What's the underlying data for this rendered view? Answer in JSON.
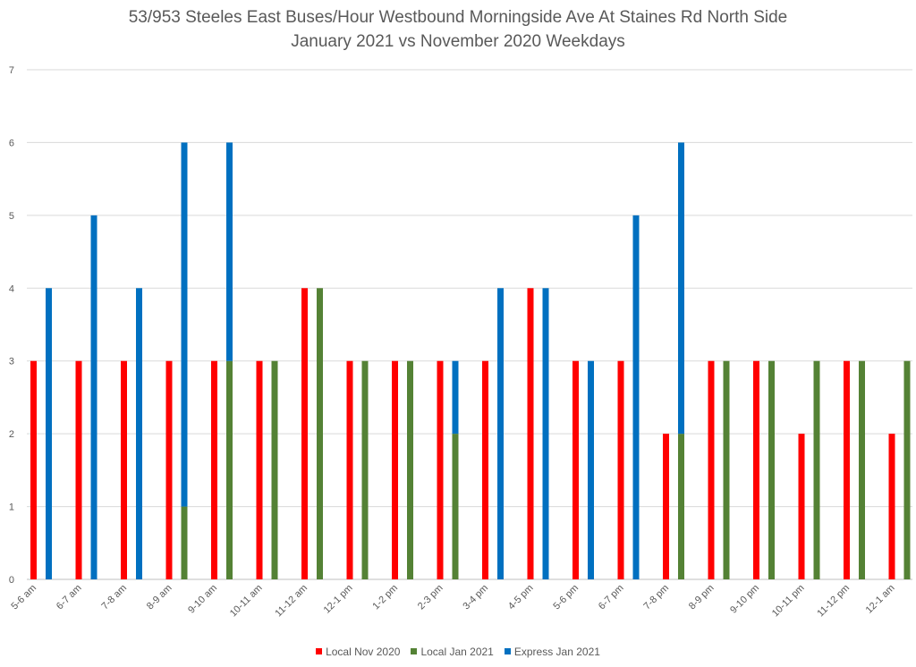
{
  "chart_data": {
    "type": "bar",
    "title": "53/953 Steeles East Buses/Hour Westbound Morningside Ave At Staines Rd North Side",
    "subtitle": "January 2021 vs November 2020 Weekdays",
    "categories": [
      "5-6 am",
      "6-7 am",
      "7-8 am",
      "8-9 am",
      "9-10 am",
      "10-11 am",
      "11-12 am",
      "12-1 pm",
      "1-2 pm",
      "2-3 pm",
      "3-4 pm",
      "4-5 pm",
      "5-6 pm",
      "6-7 pm",
      "7-8 pm",
      "8-9 pm",
      "9-10 pm",
      "10-11 pm",
      "11-12 pm",
      "12-1 am"
    ],
    "series": [
      {
        "name": "Local Nov 2020",
        "color": "#ff0000",
        "stack": "nov",
        "values": [
          3,
          3,
          3,
          3,
          3,
          3,
          4,
          3,
          3,
          3,
          3,
          4,
          3,
          3,
          2,
          3,
          3,
          2,
          3,
          2
        ]
      },
      {
        "name": "Local Jan 2021",
        "color": "#548235",
        "stack": "jan",
        "values": [
          0,
          0,
          0,
          1,
          3,
          3,
          4,
          3,
          3,
          2,
          0,
          0,
          0,
          0,
          2,
          3,
          3,
          3,
          3,
          3
        ]
      },
      {
        "name": "Express Jan 2021",
        "color": "#0070c0",
        "stack": "jan",
        "values": [
          4,
          5,
          4,
          5,
          3,
          0,
          0,
          0,
          0,
          1,
          4,
          4,
          3,
          5,
          4,
          0,
          0,
          0,
          0,
          0
        ]
      }
    ],
    "ylim": [
      0,
      7
    ],
    "yticks": [
      0,
      1,
      2,
      3,
      4,
      5,
      6,
      7
    ],
    "grid": true,
    "legend": "bottom"
  }
}
